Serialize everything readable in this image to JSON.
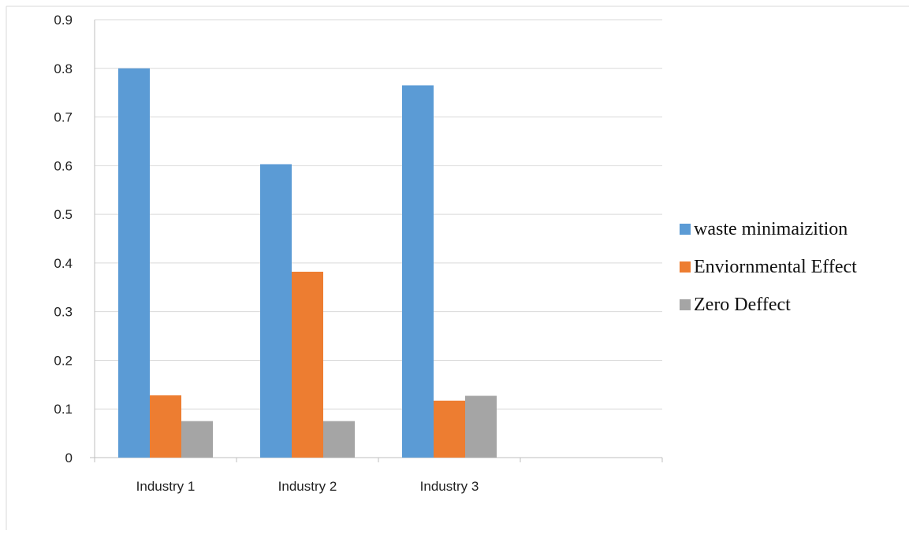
{
  "chart_data": {
    "type": "bar",
    "categories": [
      "Industry 1",
      "Industry 2",
      "Industry 3",
      ""
    ],
    "series": [
      {
        "name": "waste minimaizition",
        "color": "#5b9bd5",
        "values": [
          0.8,
          0.603,
          0.765,
          null
        ]
      },
      {
        "name": "Enviornmental Effect",
        "color": "#ed7d31",
        "values": [
          0.128,
          0.382,
          0.117,
          null
        ]
      },
      {
        "name": "Zero Deffect",
        "color": "#a5a5a5",
        "values": [
          0.075,
          0.075,
          0.127,
          null
        ]
      }
    ],
    "y_ticks": [
      "0",
      "0.1",
      "0.2",
      "0.3",
      "0.4",
      "0.5",
      "0.6",
      "0.7",
      "0.8",
      "0.9"
    ],
    "ylim": [
      0,
      0.9
    ],
    "grid": true,
    "legend_position": "right",
    "title": "",
    "xlabel": "",
    "ylabel": ""
  }
}
